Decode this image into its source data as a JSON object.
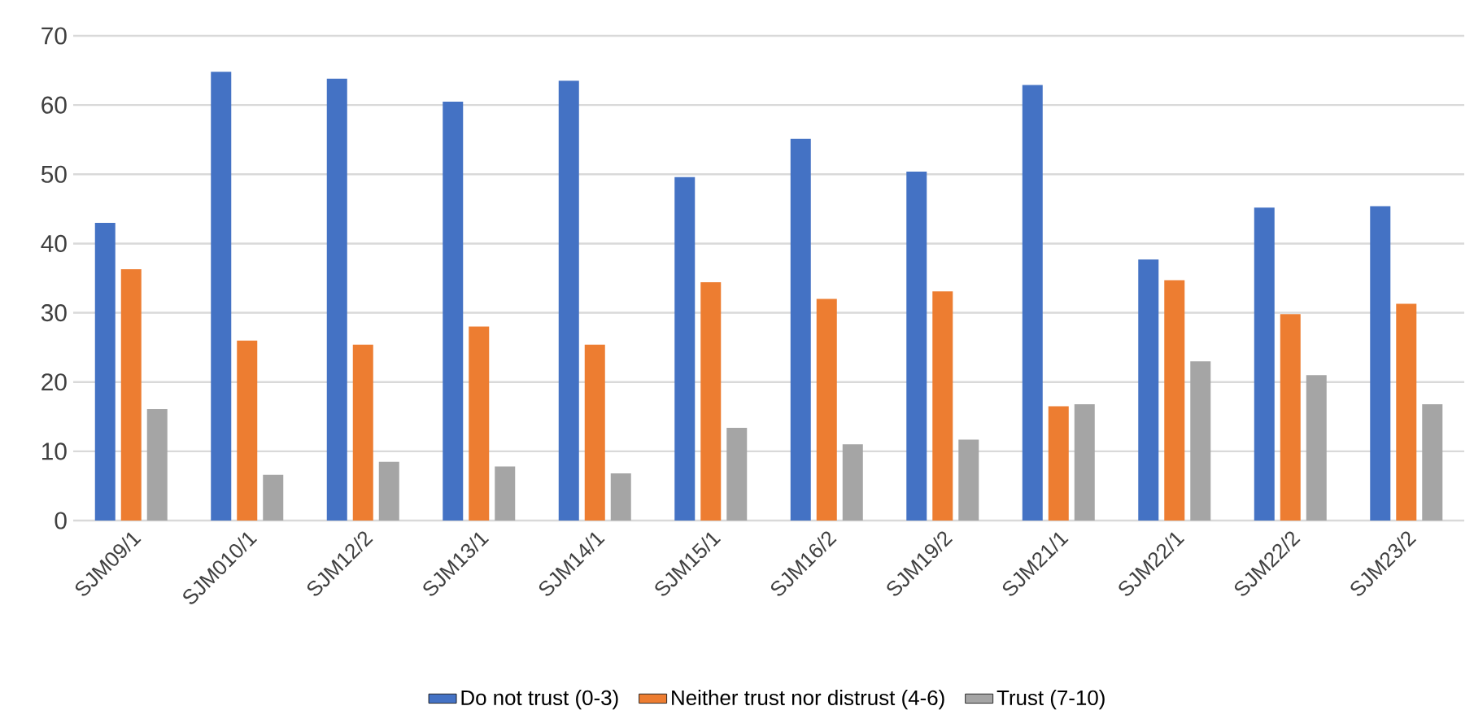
{
  "chart_data": {
    "type": "bar",
    "categories": [
      "SJM09/1",
      "SJM010/1",
      "SJM12/2",
      "SJM13/1",
      "SJM14/1",
      "SJM15/1",
      "SJM16/2",
      "SJM19/2",
      "SJM21/1",
      "SJM22/1",
      "SJM22/2",
      "SJM23/2"
    ],
    "series": [
      {
        "name": "Do not trust (0-3)",
        "color": "#4472c4",
        "values": [
          43.0,
          64.8,
          63.8,
          60.5,
          63.5,
          49.6,
          55.1,
          50.4,
          62.9,
          37.7,
          45.2,
          45.4
        ]
      },
      {
        "name": "Neither trust nor distrust (4-6)",
        "color": "#ed7d31",
        "values": [
          36.3,
          26.0,
          25.4,
          28.0,
          25.4,
          34.4,
          32.0,
          33.1,
          16.5,
          34.7,
          29.8,
          31.3
        ]
      },
      {
        "name": "Trust (7-10)",
        "color": "#a5a5a5",
        "values": [
          16.1,
          6.6,
          8.5,
          7.8,
          6.8,
          13.4,
          11.0,
          11.7,
          16.8,
          23.0,
          21.0,
          16.8
        ]
      }
    ],
    "ylim": [
      0,
      70
    ],
    "yticks": [
      0,
      10,
      20,
      30,
      40,
      50,
      60,
      70
    ],
    "grid": "y",
    "legend": "bottom"
  }
}
